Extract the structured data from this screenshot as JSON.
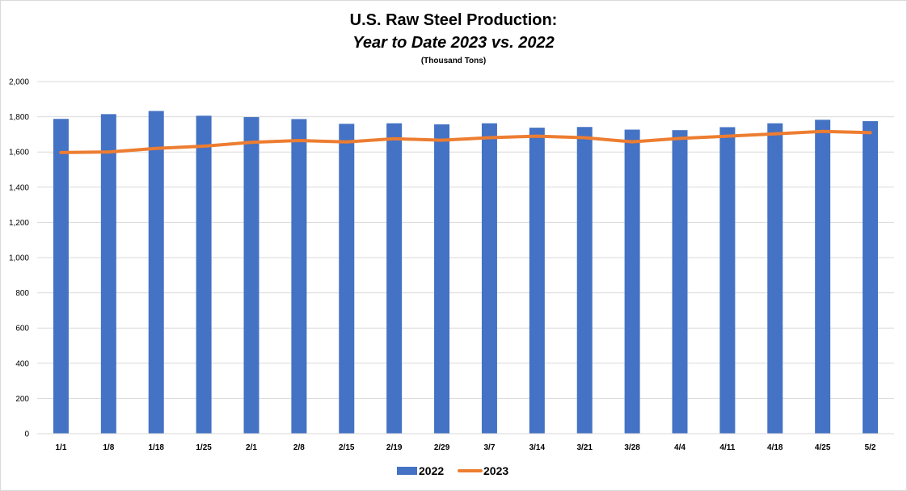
{
  "chart_data": {
    "type": "bar",
    "title": "U.S. Raw Steel Production:",
    "subtitle": "Year to Date 2023 vs. 2022",
    "units": "(Thousand Tons)",
    "ylim": [
      0,
      2000
    ],
    "yticks": [
      0,
      200,
      400,
      600,
      800,
      1000,
      1200,
      1400,
      1600,
      1800,
      2000
    ],
    "ytick_labels": [
      "0",
      "200",
      "400",
      "600",
      "800",
      "1,000",
      "1,200",
      "1,400",
      "1,600",
      "1,800",
      "2,000"
    ],
    "grid": true,
    "legend_position": "bottom",
    "categories": [
      "1/1",
      "1/8",
      "1/18",
      "1/25",
      "2/1",
      "2/8",
      "2/15",
      "2/19",
      "2/29",
      "3/7",
      "3/14",
      "3/21",
      "3/28",
      "4/4",
      "4/11",
      "4/18",
      "4/25",
      "5/2"
    ],
    "series": [
      {
        "name": "2022",
        "type": "bar",
        "color": "#4472c4",
        "values": [
          1788,
          1815,
          1833,
          1806,
          1798,
          1787,
          1760,
          1763,
          1757,
          1763,
          1738,
          1742,
          1727,
          1724,
          1741,
          1763,
          1783,
          1775
        ]
      },
      {
        "name": "2023",
        "type": "line",
        "color": "#ed7d31",
        "values": [
          1597,
          1600,
          1620,
          1633,
          1655,
          1665,
          1657,
          1675,
          1667,
          1681,
          1690,
          1681,
          1658,
          1677,
          1690,
          1703,
          1717,
          1710
        ]
      }
    ]
  }
}
